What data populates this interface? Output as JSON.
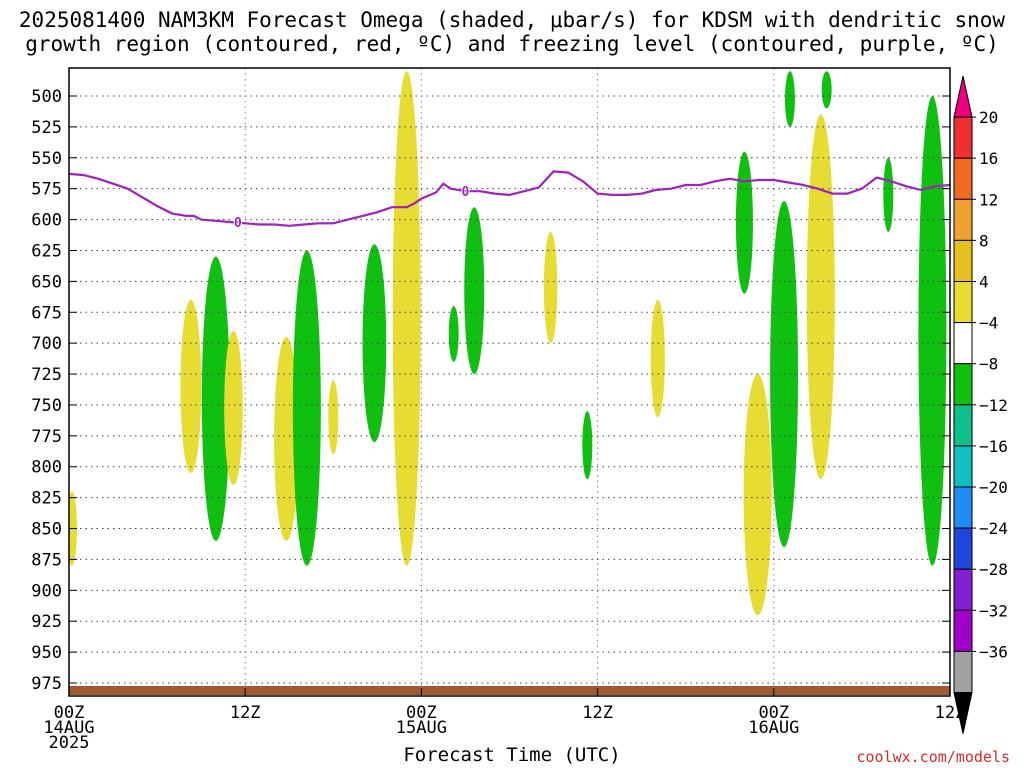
{
  "title": {
    "line1": "2025081400 NAM3KM Forecast Omega (shaded, μbar/s) for KDSM with dendritic snow",
    "line2": "growth region (contoured, red, ºC) and freezing level (contoured, purple, ºC)"
  },
  "xlabel": "Forecast Time (UTC)",
  "watermark": "coolwx.com/models",
  "chart_data": {
    "type": "heatmap",
    "title": "2025081400 NAM3KM Forecast Omega (shaded, μbar/s) for KDSM with dendritic snow growth region (contoured, red, ºC) and freezing level (contoured, purple, ºC)",
    "xlabel": "Forecast Time (UTC)",
    "ylabel": "",
    "x_unit": "forecast hour",
    "xlim": [
      0,
      60
    ],
    "ylim": [
      987,
      480
    ],
    "y_reversed": true,
    "grid": true,
    "x_ticks": [
      {
        "value": 0,
        "lines": [
          "00Z",
          "14AUG",
          "2025"
        ]
      },
      {
        "value": 12,
        "lines": [
          "12Z"
        ]
      },
      {
        "value": 24,
        "lines": [
          "00Z",
          "15AUG"
        ]
      },
      {
        "value": 36,
        "lines": [
          "12Z"
        ]
      },
      {
        "value": 48,
        "lines": [
          "00Z",
          "16AUG"
        ]
      },
      {
        "value": 60,
        "lines": [
          "12Z"
        ]
      }
    ],
    "y_ticks": [
      500,
      525,
      550,
      575,
      600,
      625,
      650,
      675,
      700,
      725,
      750,
      775,
      800,
      825,
      850,
      875,
      900,
      925,
      950,
      975
    ],
    "colorbar": {
      "colors": [
        "#ee0080",
        "#f03030",
        "#f06a20",
        "#f0a030",
        "#e6c020",
        "#e6dc32",
        "#ffffff",
        "#10c010",
        "#10c08a",
        "#10c0c0",
        "#1e8cf0",
        "#1e46dc",
        "#8020d0",
        "#a000c8",
        "#a0a0a0",
        "#000000"
      ],
      "labels": [
        "20",
        "16",
        "12",
        "8",
        "4",
        "−4",
        "−8",
        "−12",
        "−16",
        "−20",
        "−24",
        "−28",
        "−32",
        "−36"
      ]
    },
    "freezing_level": {
      "color": "#a020c0",
      "label": "0",
      "label_at_hours": [
        11.5,
        27
      ],
      "points": [
        [
          0,
          563
        ],
        [
          1,
          564
        ],
        [
          2,
          567
        ],
        [
          3,
          571
        ],
        [
          4,
          575
        ],
        [
          5,
          582
        ],
        [
          6,
          589
        ],
        [
          7,
          595
        ],
        [
          8,
          597
        ],
        [
          8.5,
          597
        ],
        [
          9,
          600
        ],
        [
          10,
          601
        ],
        [
          11,
          602
        ],
        [
          12,
          603
        ],
        [
          13,
          604
        ],
        [
          14,
          604
        ],
        [
          15,
          605
        ],
        [
          16,
          604
        ],
        [
          17,
          603
        ],
        [
          18,
          603
        ],
        [
          19,
          600
        ],
        [
          20,
          597
        ],
        [
          21,
          594
        ],
        [
          22,
          590
        ],
        [
          23,
          590
        ],
        [
          23.5,
          587
        ],
        [
          24,
          583
        ],
        [
          25,
          578
        ],
        [
          25.5,
          571
        ],
        [
          26,
          575
        ],
        [
          27,
          577
        ],
        [
          28,
          577
        ],
        [
          29,
          579
        ],
        [
          30,
          580
        ],
        [
          31,
          577
        ],
        [
          32,
          574
        ],
        [
          33,
          561
        ],
        [
          34,
          562
        ],
        [
          35,
          569
        ],
        [
          36,
          579
        ],
        [
          37,
          580
        ],
        [
          38,
          580
        ],
        [
          39,
          579
        ],
        [
          40,
          576
        ],
        [
          41,
          575
        ],
        [
          42,
          572
        ],
        [
          43,
          572
        ],
        [
          44,
          569
        ],
        [
          45,
          567
        ],
        [
          46,
          569
        ],
        [
          47,
          568
        ],
        [
          48,
          568
        ],
        [
          49,
          570
        ],
        [
          50,
          572
        ],
        [
          51,
          575
        ],
        [
          52,
          579
        ],
        [
          53,
          579
        ],
        [
          54,
          575
        ],
        [
          55,
          566
        ],
        [
          56,
          569
        ],
        [
          57,
          573
        ],
        [
          58,
          576
        ],
        [
          59,
          573
        ],
        [
          60,
          572
        ]
      ]
    },
    "omega_blobs": [
      {
        "color": "#e6dc32",
        "h": 0.2,
        "p0": 820,
        "p1": 880
      },
      {
        "color": "#e6dc32",
        "h": 8.3,
        "p0": 665,
        "p1": 805
      },
      {
        "color": "#10c010",
        "h": 10.0,
        "p0": 630,
        "p1": 860
      },
      {
        "color": "#e6dc32",
        "h": 11.2,
        "p0": 690,
        "p1": 815
      },
      {
        "color": "#e6dc32",
        "h": 14.8,
        "p0": 695,
        "p1": 860
      },
      {
        "color": "#10c010",
        "h": 16.2,
        "p0": 625,
        "p1": 880
      },
      {
        "color": "#e6dc32",
        "h": 18.0,
        "p0": 730,
        "p1": 790
      },
      {
        "color": "#10c010",
        "h": 20.8,
        "p0": 620,
        "p1": 780
      },
      {
        "color": "#e6dc32",
        "h": 23.0,
        "p0": 480,
        "p1": 880
      },
      {
        "color": "#10c010",
        "h": 27.6,
        "p0": 590,
        "p1": 725
      },
      {
        "color": "#10c010",
        "h": 26.2,
        "p0": 670,
        "p1": 715
      },
      {
        "color": "#e6dc32",
        "h": 32.8,
        "p0": 610,
        "p1": 700
      },
      {
        "color": "#10c010",
        "h": 35.3,
        "p0": 755,
        "p1": 810
      },
      {
        "color": "#e6dc32",
        "h": 40.1,
        "p0": 665,
        "p1": 760
      },
      {
        "color": "#10c010",
        "h": 46.0,
        "p0": 545,
        "p1": 660
      },
      {
        "color": "#e6dc32",
        "h": 46.9,
        "p0": 725,
        "p1": 920
      },
      {
        "color": "#10c010",
        "h": 48.7,
        "p0": 585,
        "p1": 865
      },
      {
        "color": "#10c010",
        "h": 49.1,
        "p0": 480,
        "p1": 525
      },
      {
        "color": "#e6dc32",
        "h": 51.2,
        "p0": 515,
        "p1": 810
      },
      {
        "color": "#10c010",
        "h": 51.6,
        "p0": 480,
        "p1": 510
      },
      {
        "color": "#10c010",
        "h": 55.8,
        "p0": 550,
        "p1": 610
      },
      {
        "color": "#10c010",
        "h": 58.8,
        "p0": 500,
        "p1": 880
      }
    ],
    "ground_color": "#a05a32"
  }
}
